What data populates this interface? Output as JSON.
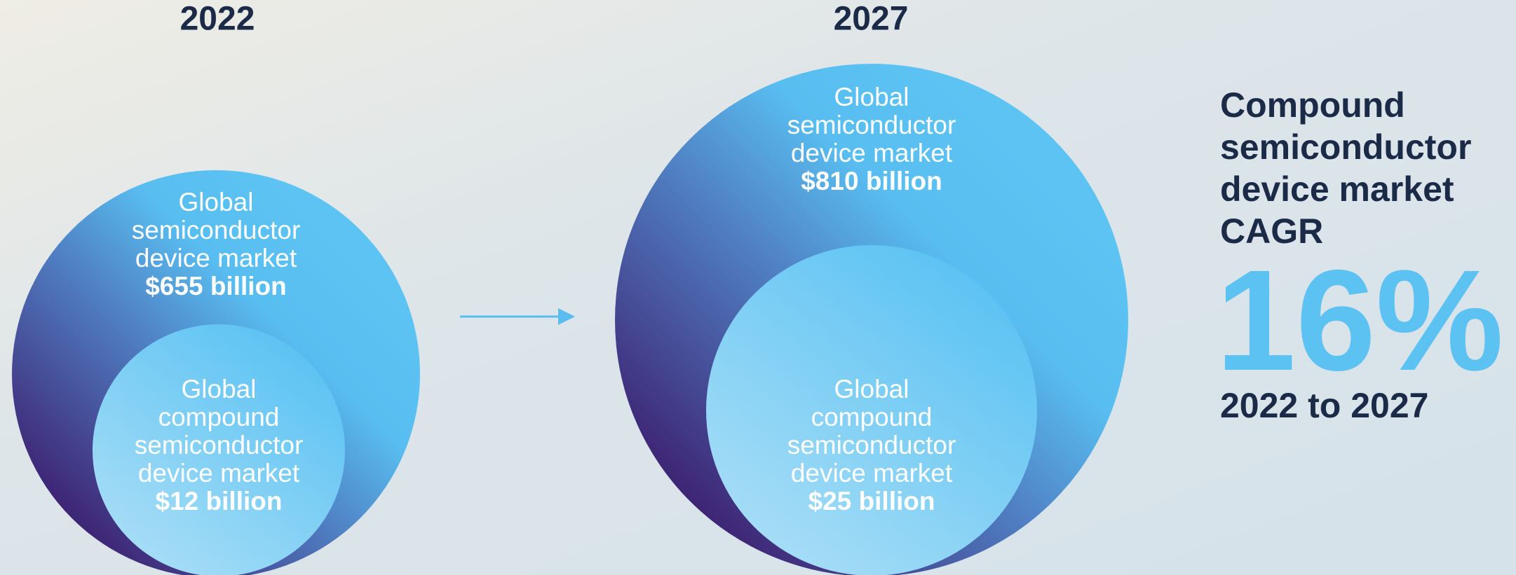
{
  "panels": [
    {
      "year": "2022",
      "outer": {
        "lines": [
          "Global",
          "semiconductor",
          "device market"
        ],
        "value": "$655 billion"
      },
      "inner": {
        "lines": [
          "Global",
          "compound",
          "semiconductor",
          "device market"
        ],
        "value": "$12 billion"
      }
    },
    {
      "year": "2027",
      "outer": {
        "lines": [
          "Global",
          "semiconductor",
          "device market"
        ],
        "value": "$810 billion"
      },
      "inner": {
        "lines": [
          "Global",
          "compound",
          "semiconductor",
          "device market"
        ],
        "value": "$25 billion"
      }
    }
  ],
  "cagr": {
    "title_lines": [
      "Compound",
      "semiconductor",
      "device market",
      "CAGR"
    ],
    "value": "16%",
    "period": "2022 to 2027"
  }
}
